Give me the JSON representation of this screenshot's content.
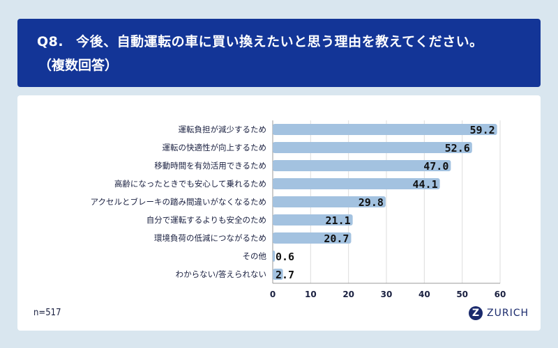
{
  "header": {
    "qnum": "Q8.",
    "question": "今後、自動運転の車に買い換えたいと思う理由を教えてください。",
    "note": "（複数回答）"
  },
  "footer": {
    "n": "n=517",
    "brand": "ZURICH",
    "brand_mark": "Z"
  },
  "colors": {
    "header": "#133597",
    "bar": "#a3c2e0",
    "background": "#d9e6ef"
  },
  "chart_data": {
    "type": "bar",
    "orientation": "horizontal",
    "categories": [
      "運転負担が減少するため",
      "運転の快適性が向上するため",
      "移動時間を有効活用できるため",
      "高齢になったときでも安心して乗れるため",
      "アクセルとブレーキの踏み間違いがなくなるため",
      "自分で運転するよりも安全のため",
      "環境負荷の低減につながるため",
      "その他",
      "わからない/答えられない"
    ],
    "values": [
      59.2,
      52.6,
      47.0,
      44.1,
      29.8,
      21.1,
      20.7,
      0.6,
      2.7
    ],
    "labels": [
      "59.2",
      "52.6",
      "47.0",
      "44.1",
      "29.8",
      "21.1",
      "20.7",
      "0.6",
      "2.7"
    ],
    "xlim": [
      0,
      60
    ],
    "xticks": [
      "0",
      "10",
      "20",
      "30",
      "40",
      "50",
      "60"
    ],
    "grid": true
  }
}
